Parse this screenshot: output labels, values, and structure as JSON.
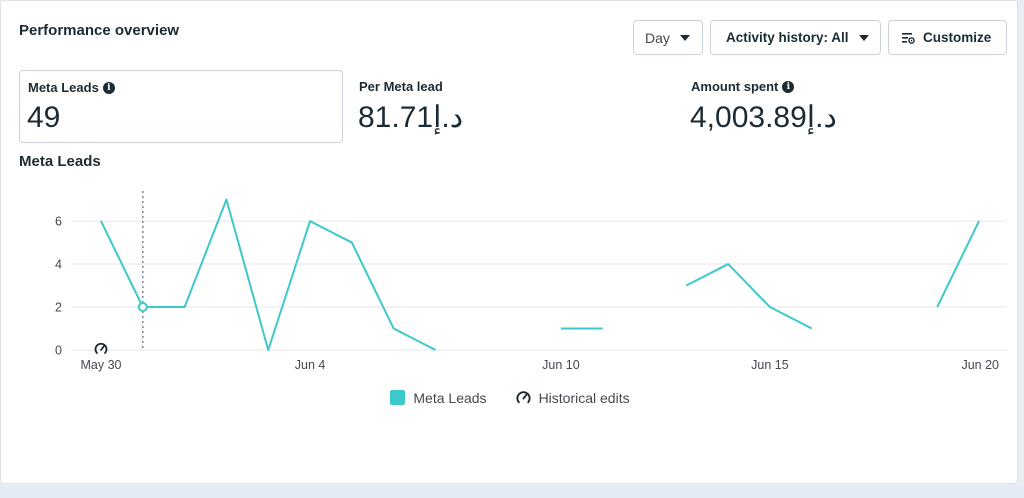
{
  "header": {
    "title": "Performance overview"
  },
  "toolbar": {
    "day_label": "Day",
    "activity_label": "Activity history: All",
    "customize_label": "Customize"
  },
  "metrics": [
    {
      "label": "Meta Leads",
      "value": "49",
      "has_info": true
    },
    {
      "label": "Per Meta lead",
      "value": "81.71د.إ",
      "has_info": false
    },
    {
      "label": "Amount spent",
      "value": "4,003.89د.إ",
      "has_info": true
    }
  ],
  "legend": {
    "series_label": "Meta Leads",
    "edits_label": "Historical edits"
  },
  "colors": {
    "series": "#3dc8cc",
    "text": "#1c2b33",
    "grid": "#e4e6eb"
  },
  "chart_data": {
    "type": "line",
    "title": "Meta Leads",
    "x": [
      "May 30",
      "May 31",
      "Jun 1",
      "Jun 2",
      "Jun 3",
      "Jun 4",
      "Jun 5",
      "Jun 6",
      "Jun 7",
      "Jun 8",
      "Jun 9",
      "Jun 10",
      "Jun 11",
      "Jun 12",
      "Jun 13",
      "Jun 14",
      "Jun 15",
      "Jun 16",
      "Jun 17",
      "Jun 18",
      "Jun 19",
      "Jun 20"
    ],
    "x_tick_labels": [
      "May 30",
      "Jun 4",
      "Jun 10",
      "Jun 15",
      "Jun 20"
    ],
    "series": [
      {
        "name": "Meta Leads",
        "values": [
          6,
          2,
          2,
          7,
          0,
          6,
          5,
          1,
          0,
          null,
          null,
          1,
          1,
          null,
          3,
          4,
          2,
          1,
          null,
          null,
          2,
          6
        ]
      }
    ],
    "y_ticks": [
      0,
      2,
      4,
      6
    ],
    "ylim": [
      0,
      7.4
    ],
    "highlight": {
      "x": "May 31",
      "value": 2
    },
    "historical_edits": [
      "May 30"
    ],
    "grid": true,
    "legend_position": "bottom-center"
  }
}
